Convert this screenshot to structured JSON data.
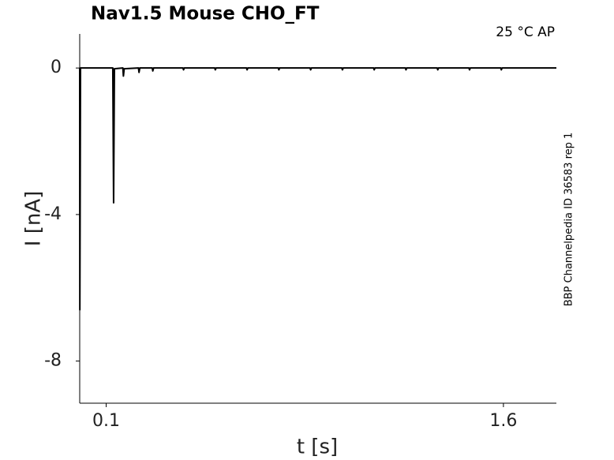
{
  "chart_data": {
    "type": "line",
    "title": "Nav1.5  Mouse  CHO_FT",
    "annotation": "25 °C  AP",
    "side_note": "BBP Channelpedia ID 36583 rep 1",
    "xlabel": "t [s]",
    "ylabel": "I [nA]",
    "x": [
      0,
      0.0005,
      0.003,
      0.125,
      0.128,
      0.131,
      0.163,
      0.165,
      0.168,
      0.222,
      0.224,
      0.227,
      0.274,
      0.276,
      0.279,
      0.39,
      0.392,
      0.395,
      0.51,
      0.512,
      0.515,
      0.63,
      0.632,
      0.635,
      0.75,
      0.752,
      0.755,
      0.87,
      0.872,
      0.875,
      0.99,
      0.992,
      0.995,
      1.11,
      1.112,
      1.115,
      1.23,
      1.232,
      1.235,
      1.35,
      1.352,
      1.355,
      1.47,
      1.472,
      1.475,
      1.59,
      1.592,
      1.595,
      1.8
    ],
    "values": [
      0,
      -6.6,
      0,
      0,
      -3.68,
      -0.02,
      0,
      -0.22,
      -0.02,
      0,
      -0.12,
      0,
      0,
      -0.08,
      0,
      0,
      -0.05,
      0,
      0,
      -0.05,
      0,
      0,
      -0.05,
      0,
      0,
      -0.05,
      0,
      0,
      -0.05,
      0,
      0,
      -0.05,
      0,
      0,
      -0.05,
      0,
      0,
      -0.05,
      0,
      0,
      -0.05,
      0,
      0,
      -0.05,
      0,
      0,
      -0.05,
      0,
      0
    ],
    "color": "#000000",
    "xlim": [
      0,
      1.8
    ],
    "xticks": [
      0.1,
      1.6
    ],
    "ylim": [
      -9.15,
      0.93
    ],
    "yticks": [
      0,
      -4,
      -8
    ]
  }
}
